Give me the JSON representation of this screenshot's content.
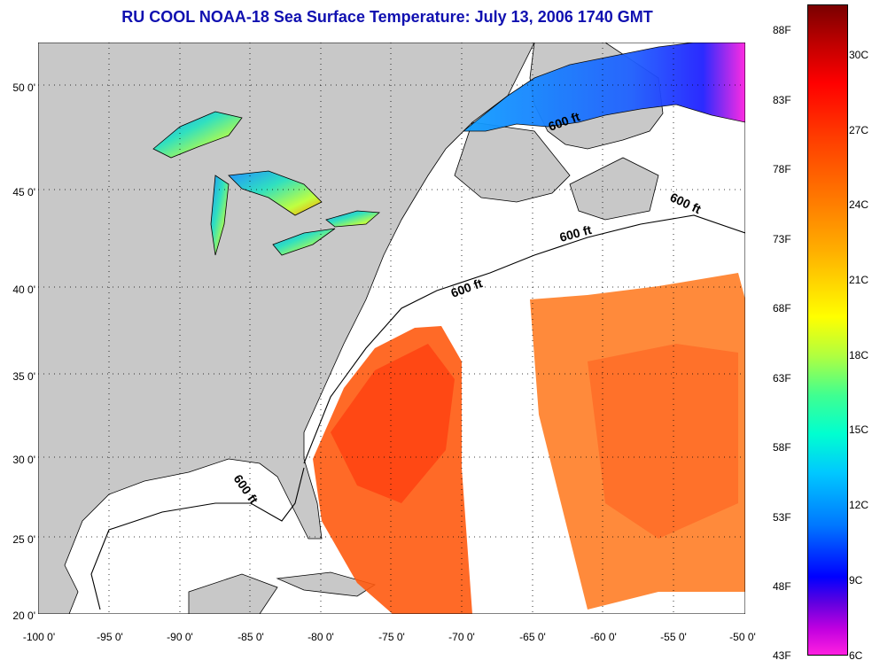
{
  "title": "RU COOL  NOAA-18  Sea Surface Temperature:  July 13, 2006 1740 GMT",
  "axes": {
    "lat_labels": [
      "50 0'",
      "45 0'",
      "40 0'",
      "35 0'",
      "30 0'",
      "25 0'",
      "20 0'"
    ],
    "lon_labels": [
      "-100 0'",
      "-95 0'",
      "-90 0'",
      "-85 0'",
      "-80 0'",
      "-75 0'",
      "-70 0'",
      "-65 0'",
      "-60 0'",
      "-55 0'",
      "-50 0'"
    ]
  },
  "isobath_label": "600 ft",
  "colorbar": {
    "fahrenheit": [
      "88F",
      "83F",
      "78F",
      "73F",
      "68F",
      "63F",
      "58F",
      "53F",
      "48F",
      "43F"
    ],
    "celsius": [
      "30C",
      "27C",
      "24C",
      "21C",
      "18C",
      "15C",
      "12C",
      "9C",
      "6C"
    ]
  },
  "colors": {
    "title": "#1010b0",
    "land": "#c8c8c8",
    "ocean_nodata": "#ffffff"
  }
}
